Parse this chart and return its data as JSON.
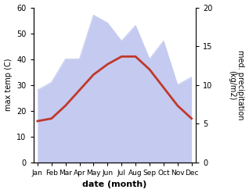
{
  "months": [
    "Jan",
    "Feb",
    "Mar",
    "Apr",
    "May",
    "Jun",
    "Jul",
    "Aug",
    "Sep",
    "Oct",
    "Nov",
    "Dec"
  ],
  "temp": [
    16,
    17,
    22,
    28,
    34,
    38,
    41,
    41,
    36,
    29,
    22,
    17
  ],
  "precip": [
    28,
    31,
    40,
    40,
    57,
    54,
    47,
    53,
    40,
    47,
    30,
    33
  ],
  "temp_color": "#c0392b",
  "precip_fill_color": "#c5caf0",
  "left_ylim": [
    0,
    60
  ],
  "right_ylim": [
    0,
    20
  ],
  "left_ylabel": "max temp (C)",
  "right_ylabel": "med. precipitation\n(kg/m2)",
  "xlabel": "date (month)",
  "temp_lw": 2.0,
  "fig_bg": "#ffffff"
}
